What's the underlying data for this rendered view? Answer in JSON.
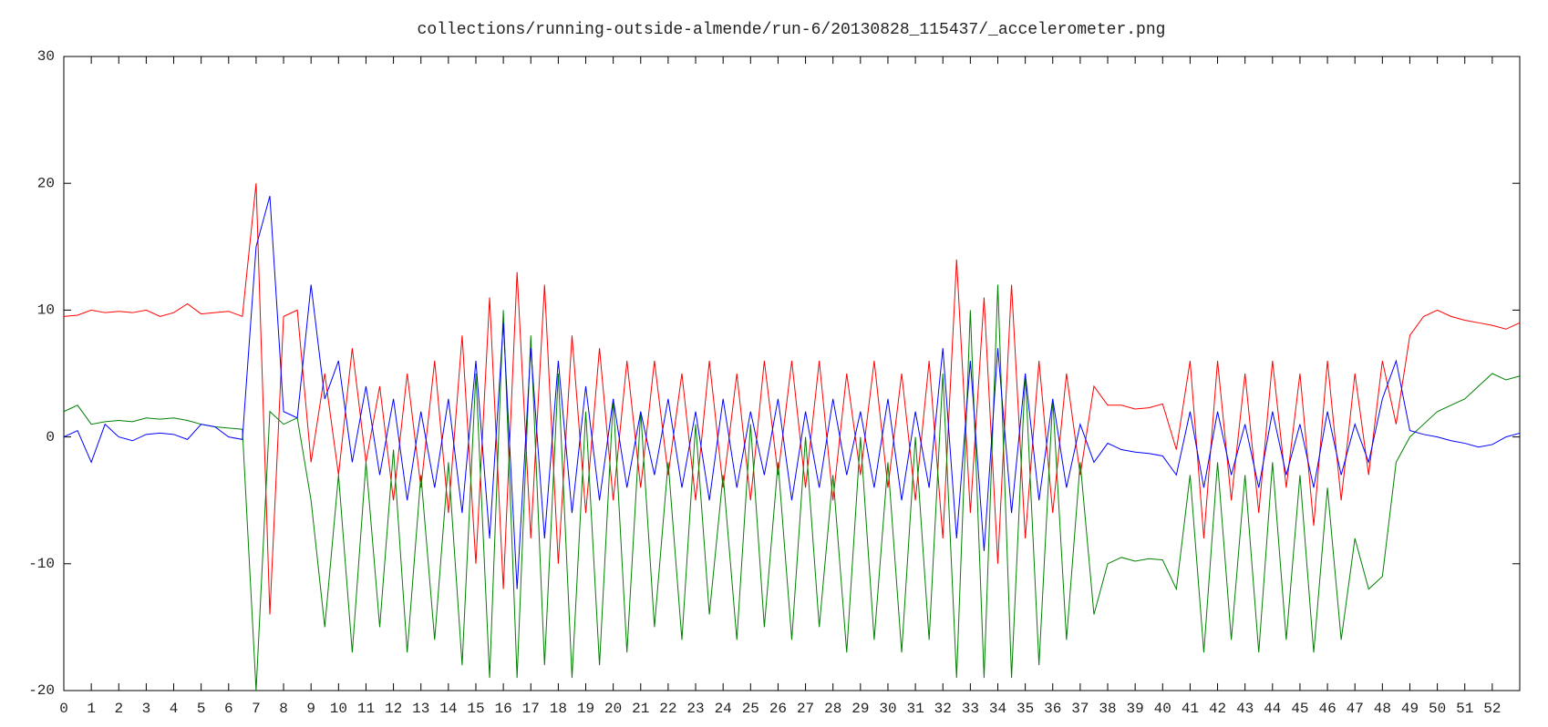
{
  "chart_data": {
    "type": "line",
    "title": "collections/running-outside-almende/run-6/20130828_115437/_accelerometer.png",
    "x": [
      0,
      0.5,
      1,
      1.5,
      2,
      2.5,
      3,
      3.5,
      4,
      4.5,
      5,
      5.5,
      6,
      6.5,
      7,
      7.5,
      8,
      8.5,
      9,
      9.5,
      10,
      10.5,
      11,
      11.5,
      12,
      12.5,
      13,
      13.5,
      14,
      14.5,
      15,
      15.5,
      16,
      16.5,
      17,
      17.5,
      18,
      18.5,
      19,
      19.5,
      20,
      20.5,
      21,
      21.5,
      22,
      22.5,
      23,
      23.5,
      24,
      24.5,
      25,
      25.5,
      26,
      26.5,
      27,
      27.5,
      28,
      28.5,
      29,
      29.5,
      30,
      30.5,
      31,
      31.5,
      32,
      32.5,
      33,
      33.5,
      34,
      34.5,
      35,
      35.5,
      36,
      36.5,
      37,
      37.5,
      38,
      38.5,
      39,
      39.5,
      40,
      40.5,
      41,
      41.5,
      42,
      42.5,
      43,
      43.5,
      44,
      44.5,
      45,
      45.5,
      46,
      46.5,
      47,
      47.5,
      48,
      48.5,
      49,
      49.5,
      50,
      50.5,
      51,
      51.5,
      52,
      52.5,
      53
    ],
    "series": [
      {
        "color": "#ff0000",
        "values": [
          9.5,
          9.6,
          10,
          9.8,
          9.9,
          9.8,
          10,
          9.5,
          9.8,
          10.5,
          9.7,
          9.8,
          9.9,
          9.5,
          20,
          -14,
          9.5,
          10,
          -2,
          5,
          -3,
          7,
          -2,
          4,
          -5,
          5,
          -4,
          6,
          -6,
          8,
          -10,
          11,
          -12,
          13,
          -8,
          12,
          -10,
          8,
          -6,
          7,
          -5,
          6,
          -4,
          6,
          -3,
          5,
          -5,
          6,
          -4,
          5,
          -5,
          6,
          -3,
          6,
          -4,
          6,
          -5,
          5,
          -3,
          6,
          -4,
          5,
          -5,
          6,
          -8,
          14,
          -6,
          11,
          -10,
          12,
          -8,
          6,
          -6,
          5,
          -3,
          4,
          2.5,
          2.5,
          2.2,
          2.3,
          2.6,
          -1,
          6,
          -8,
          6,
          -5,
          5,
          -6,
          6,
          -4,
          5,
          -7,
          6,
          -5,
          5,
          -3,
          6,
          1,
          8,
          9.5,
          10,
          9.5,
          9.2,
          9,
          8.8,
          8.5,
          9
        ]
      },
      {
        "color": "#008000",
        "values": [
          2,
          2.5,
          1,
          1.2,
          1.3,
          1.2,
          1.5,
          1.4,
          1.5,
          1.3,
          1,
          0.8,
          0.7,
          0.6,
          -20,
          2,
          1,
          1.5,
          -5,
          -15,
          -3,
          -17,
          -2,
          -15,
          -1,
          -17,
          -3,
          -16,
          -2,
          -18,
          5,
          -19,
          10,
          -19,
          8,
          -18,
          5,
          -19,
          2,
          -18,
          3,
          -17,
          2,
          -15,
          -2,
          -16,
          1,
          -14,
          -3,
          -16,
          1,
          -15,
          -2,
          -16,
          0,
          -15,
          -3,
          -17,
          0,
          -16,
          -2,
          -17,
          0,
          -16,
          5,
          -19,
          10,
          -19,
          12,
          -19,
          5,
          -18,
          3,
          -16,
          -2,
          -14,
          -10,
          -9.5,
          -9.8,
          -9.6,
          -9.7,
          -12,
          -3,
          -17,
          -2,
          -16,
          -3,
          -17,
          -2,
          -16,
          -3,
          -17,
          -4,
          -16,
          -8,
          -12,
          -11,
          -2,
          0,
          1,
          2,
          2.5,
          3,
          4,
          5,
          4.5,
          4.8
        ]
      },
      {
        "color": "#0000ff",
        "values": [
          0,
          0.5,
          -2,
          1,
          0,
          -0.3,
          0.2,
          0.3,
          0.2,
          -0.2,
          1,
          0.8,
          0,
          -0.2,
          15,
          19,
          2,
          1.5,
          12,
          3,
          6,
          -2,
          4,
          -3,
          3,
          -5,
          2,
          -4,
          3,
          -6,
          6,
          -8,
          9,
          -12,
          7,
          -8,
          6,
          -6,
          4,
          -5,
          3,
          -4,
          2,
          -3,
          3,
          -4,
          2,
          -5,
          3,
          -4,
          2,
          -3,
          3,
          -5,
          2,
          -4,
          3,
          -3,
          2,
          -4,
          3,
          -5,
          2,
          -4,
          7,
          -8,
          6,
          -9,
          7,
          -6,
          5,
          -5,
          3,
          -4,
          1,
          -2,
          -0.5,
          -1,
          -1.2,
          -1.3,
          -1.5,
          -3,
          2,
          -4,
          2,
          -3,
          1,
          -4,
          2,
          -3,
          1,
          -4,
          2,
          -3,
          1,
          -2,
          3,
          6,
          0.5,
          0.2,
          0,
          -0.3,
          -0.5,
          -0.8,
          -0.6,
          0,
          0.3
        ]
      }
    ],
    "xlim": [
      0,
      53
    ],
    "ylim": [
      -20,
      30
    ],
    "xticks": [
      0,
      1,
      2,
      3,
      4,
      5,
      6,
      7,
      8,
      9,
      10,
      11,
      12,
      13,
      14,
      15,
      16,
      17,
      18,
      19,
      20,
      21,
      22,
      23,
      24,
      25,
      26,
      27,
      28,
      29,
      30,
      31,
      32,
      33,
      34,
      35,
      36,
      37,
      38,
      39,
      40,
      41,
      42,
      43,
      44,
      45,
      46,
      47,
      48,
      49,
      50,
      51,
      52
    ],
    "yticks": [
      -20,
      -10,
      0,
      10,
      20,
      30
    ],
    "grid": false
  }
}
